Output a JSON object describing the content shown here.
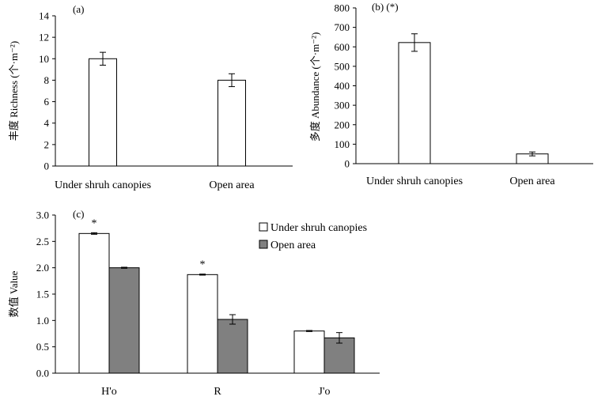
{
  "chart_data": [
    {
      "panel": "a",
      "type": "bar",
      "panel_label": "(a)",
      "categories": [
        "Under shruh canopies",
        "Open area"
      ],
      "values": [
        10.0,
        8.0
      ],
      "errors": [
        0.6,
        0.6
      ],
      "ylabel": "丰度 Richness (个·m⁻²)",
      "ylim": [
        0,
        14
      ],
      "yticks": [
        0,
        2,
        4,
        6,
        8,
        10,
        12,
        14
      ],
      "colors": [
        "#ffffff",
        "#ffffff"
      ]
    },
    {
      "panel": "b",
      "type": "bar",
      "panel_label": "(b) (*)",
      "categories": [
        "Under shruh canopies",
        "Open area"
      ],
      "values": [
        622,
        50
      ],
      "errors": [
        45,
        10
      ],
      "ylabel": "多度 Abundance (个·m⁻²)",
      "ylim": [
        0,
        800
      ],
      "yticks": [
        0,
        100,
        200,
        300,
        400,
        500,
        600,
        700,
        800
      ],
      "colors": [
        "#ffffff",
        "#ffffff"
      ]
    },
    {
      "panel": "c",
      "type": "bar",
      "panel_label": "(c)",
      "categories": [
        "H'o",
        "R",
        "J'o"
      ],
      "series": [
        {
          "name": "Under shruh canopies",
          "values": [
            2.65,
            1.87,
            0.8
          ],
          "errors": [
            0.015,
            0.01,
            0.01
          ],
          "color": "#ffffff"
        },
        {
          "name": "Open area",
          "values": [
            2.0,
            1.02,
            0.67
          ],
          "errors": [
            0.01,
            0.09,
            0.1
          ],
          "color": "#808080"
        }
      ],
      "significance": [
        {
          "category": "H'o",
          "series": "Under shruh canopies",
          "mark": "*"
        },
        {
          "category": "R",
          "series": "Under shruh canopies",
          "mark": "*"
        }
      ],
      "ylabel": "数值 Value",
      "ylim": [
        0,
        3.0
      ],
      "yticks": [
        "0.0",
        "0.5",
        "1.0",
        "1.5",
        "2.0",
        "2.5",
        "3.0"
      ],
      "legend_position": "top-right"
    }
  ]
}
